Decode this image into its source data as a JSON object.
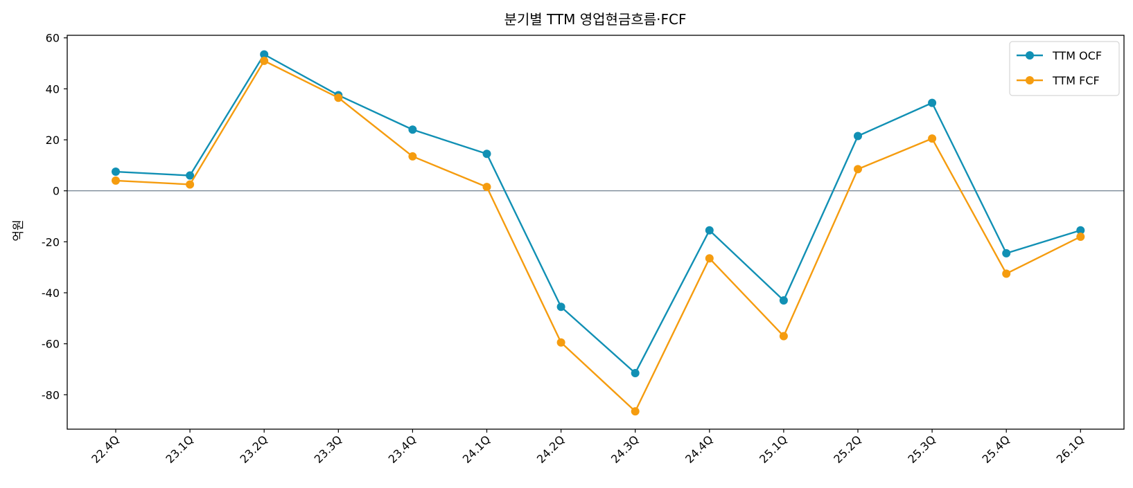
{
  "chart_data": {
    "type": "line",
    "title": "분기별 TTM 영업현금흐름·FCF",
    "xlabel": "",
    "ylabel": "억원",
    "categories": [
      "22.4Q",
      "23.1Q",
      "23.2Q",
      "23.3Q",
      "23.4Q",
      "24.1Q",
      "24.2Q",
      "24.3Q",
      "24.4Q",
      "25.1Q",
      "25.2Q",
      "25.3Q",
      "25.4Q",
      "26.1Q"
    ],
    "series": [
      {
        "name": "TTM OCF",
        "color": "#1190b4",
        "values": [
          7.5,
          6.0,
          53.5,
          37.5,
          24.0,
          14.5,
          -45.5,
          -71.5,
          -15.5,
          -43.0,
          21.5,
          34.5,
          -24.5,
          -15.5
        ]
      },
      {
        "name": "TTM FCF",
        "color": "#f59c0f",
        "values": [
          4.0,
          2.5,
          51.0,
          36.5,
          13.5,
          1.5,
          -59.5,
          -86.5,
          -26.5,
          -57.0,
          8.5,
          20.5,
          -32.5,
          -18.0
        ]
      }
    ],
    "ylim": [
      -93.5,
      61
    ],
    "yticks": [
      60,
      40,
      20,
      0,
      -20,
      -40,
      -60,
      -80
    ],
    "ytick_labels": [
      "60",
      "40",
      "20",
      "0",
      "-20",
      "-40",
      "-60",
      "-80"
    ],
    "zero_line": true,
    "zero_line_color": "#708090",
    "grid": false,
    "legend_position": "top-right"
  }
}
